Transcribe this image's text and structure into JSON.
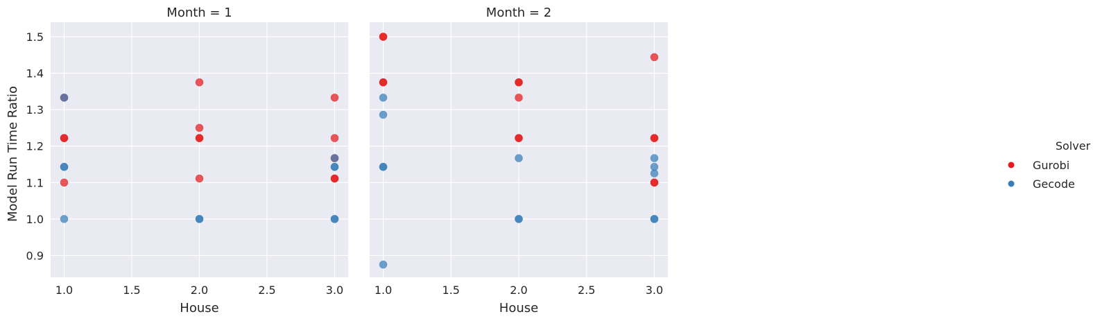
{
  "chart_data": {
    "type": "scatter",
    "ylabel": "Model Run Time Ratio",
    "legend": {
      "title": "Solver",
      "placement": "right",
      "entries": [
        {
          "name": "Gurobi",
          "color": "#e41a1c"
        },
        {
          "name": "Gecode",
          "color": "#377eb8"
        }
      ]
    },
    "x_ticks": [
      "1.0",
      "1.5",
      "2.0",
      "2.5",
      "3.0"
    ],
    "y_ticks": [
      "0.9",
      "1.0",
      "1.1",
      "1.2",
      "1.3",
      "1.4",
      "1.5"
    ],
    "xlim": [
      0.9,
      3.1
    ],
    "ylim": [
      0.84,
      1.54
    ],
    "grid": true,
    "panels": [
      {
        "title": "Month = 1",
        "xlabel": "House",
        "series": [
          {
            "name": "Gurobi",
            "points": [
              [
                1.0,
                1.333
              ],
              [
                1.0,
                1.222
              ],
              [
                1.0,
                1.222
              ],
              [
                1.0,
                1.1
              ],
              [
                2.0,
                1.375
              ],
              [
                2.0,
                1.25
              ],
              [
                2.0,
                1.222
              ],
              [
                2.0,
                1.222
              ],
              [
                2.0,
                1.111
              ],
              [
                3.0,
                1.333
              ],
              [
                3.0,
                1.222
              ],
              [
                3.0,
                1.167
              ],
              [
                3.0,
                1.111
              ],
              [
                3.0,
                1.111
              ]
            ]
          },
          {
            "name": "Gecode",
            "points": [
              [
                1.0,
                1.333
              ],
              [
                1.0,
                1.143
              ],
              [
                1.0,
                1.143
              ],
              [
                1.0,
                1.0
              ],
              [
                2.0,
                1.0
              ],
              [
                2.0,
                1.0
              ],
              [
                3.0,
                1.167
              ],
              [
                3.0,
                1.143
              ],
              [
                3.0,
                1.143
              ],
              [
                3.0,
                1.0
              ],
              [
                3.0,
                1.0
              ]
            ]
          }
        ]
      },
      {
        "title": "Month = 2",
        "xlabel": "House",
        "series": [
          {
            "name": "Gurobi",
            "points": [
              [
                1.0,
                1.5
              ],
              [
                1.0,
                1.5
              ],
              [
                1.0,
                1.375
              ],
              [
                1.0,
                1.375
              ],
              [
                2.0,
                1.375
              ],
              [
                2.0,
                1.375
              ],
              [
                2.0,
                1.333
              ],
              [
                2.0,
                1.222
              ],
              [
                2.0,
                1.222
              ],
              [
                3.0,
                1.444
              ],
              [
                3.0,
                1.222
              ],
              [
                3.0,
                1.222
              ],
              [
                3.0,
                1.1
              ],
              [
                3.0,
                1.1
              ]
            ]
          },
          {
            "name": "Gecode",
            "points": [
              [
                1.0,
                1.333
              ],
              [
                1.0,
                1.286
              ],
              [
                1.0,
                1.143
              ],
              [
                1.0,
                1.143
              ],
              [
                1.0,
                0.875
              ],
              [
                2.0,
                1.167
              ],
              [
                2.0,
                1.0
              ],
              [
                2.0,
                1.0
              ],
              [
                3.0,
                1.167
              ],
              [
                3.0,
                1.143
              ],
              [
                3.0,
                1.125
              ],
              [
                3.0,
                1.0
              ],
              [
                3.0,
                1.0
              ]
            ]
          }
        ]
      }
    ]
  }
}
